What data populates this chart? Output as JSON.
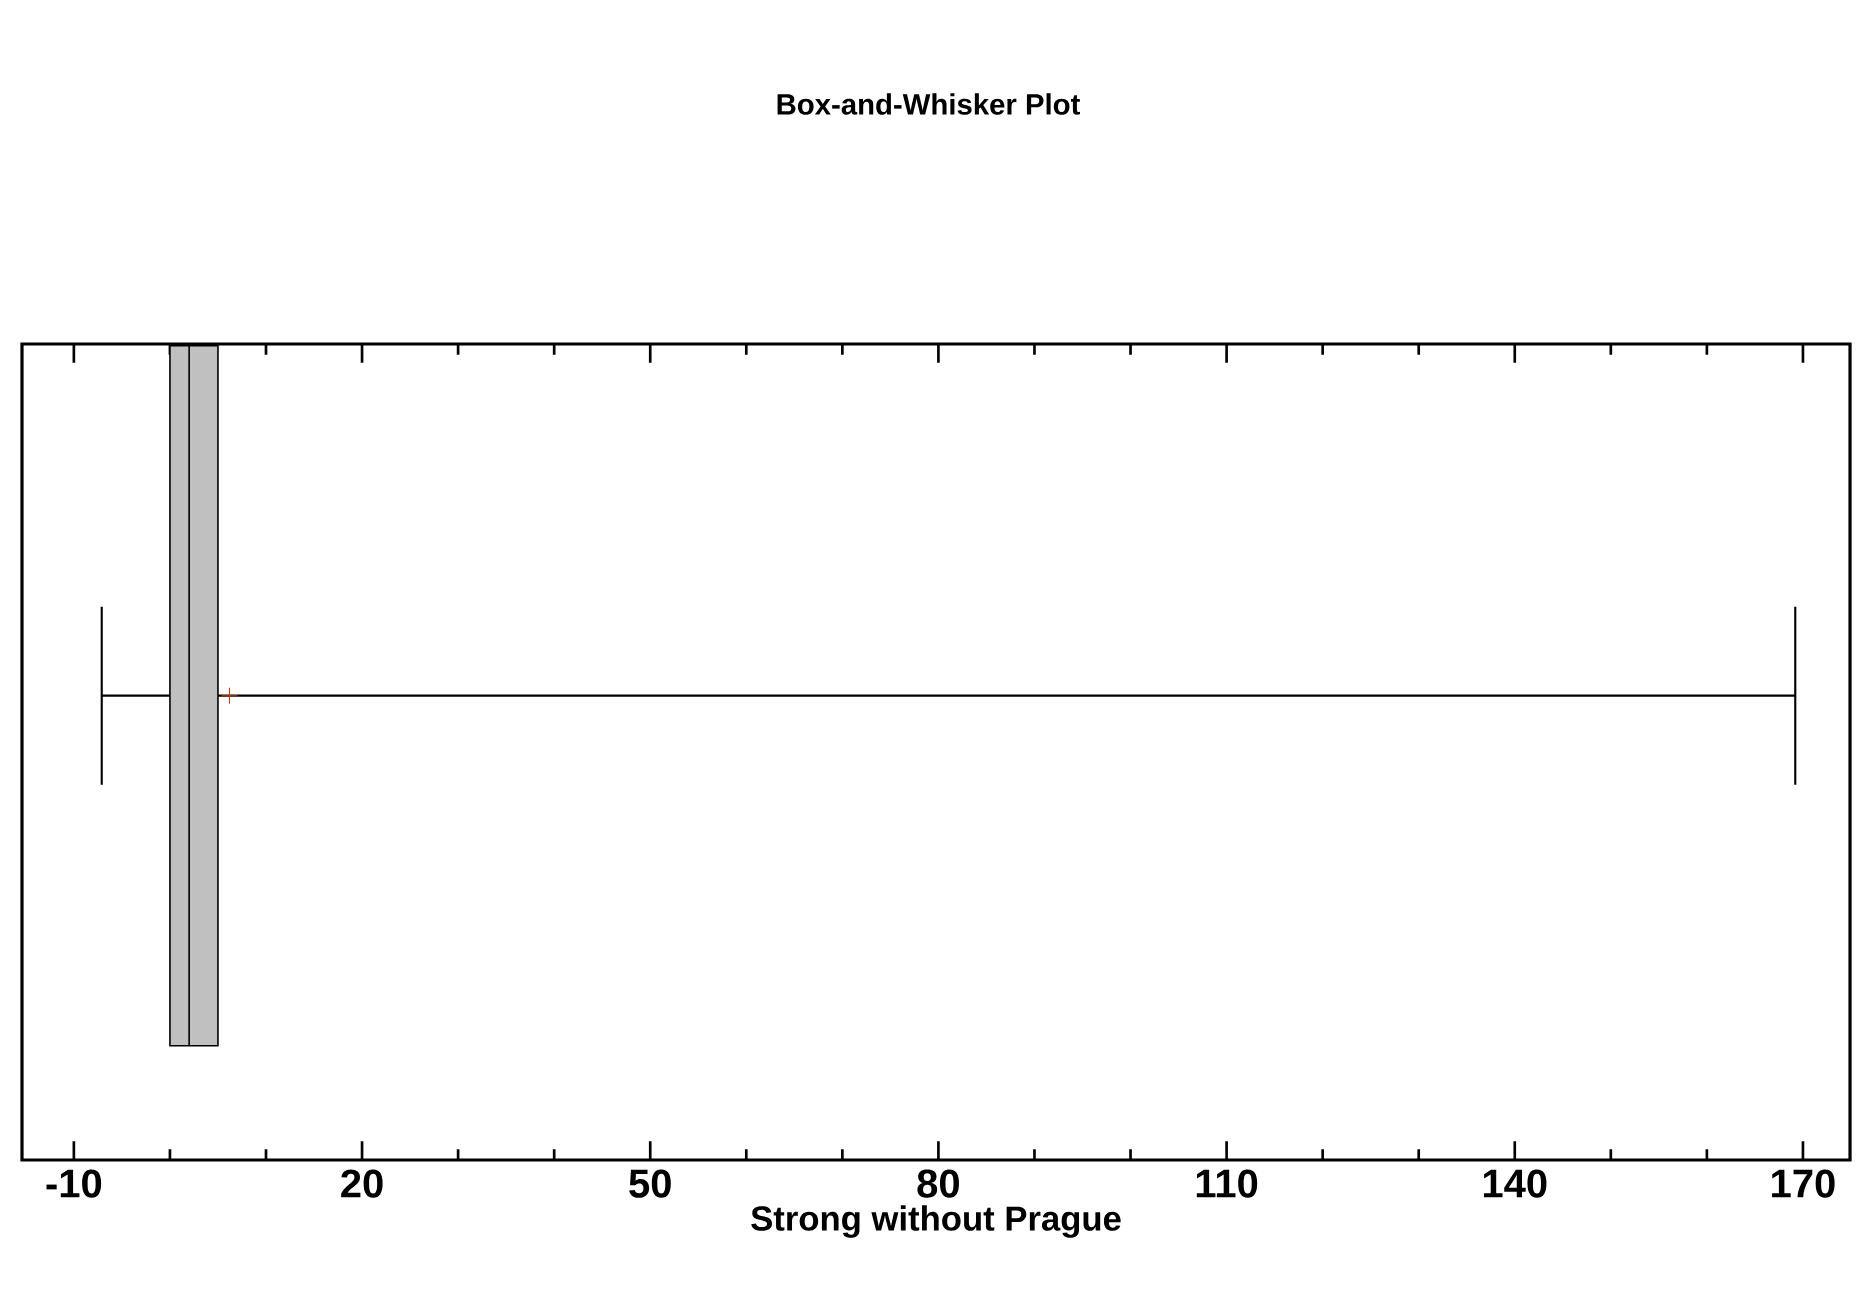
{
  "chart_data": {
    "type": "box",
    "title": "Box-and-Whisker Plot",
    "xlabel": "Strong without Prague",
    "orientation": "horizontal",
    "categories": [
      null
    ],
    "tick_labels": "x",
    "xlim": [
      -15.4,
      174.9
    ],
    "xticks": [
      -10,
      20,
      50,
      80,
      110,
      140,
      170
    ],
    "series": [
      {
        "color": "#c0c0c0",
        "boxes": [
          {
            "low": -7.1,
            "q1": 0,
            "median": 2,
            "q3": 5,
            "high": 169.2,
            "mean": 6.2
          }
        ]
      }
    ]
  }
}
